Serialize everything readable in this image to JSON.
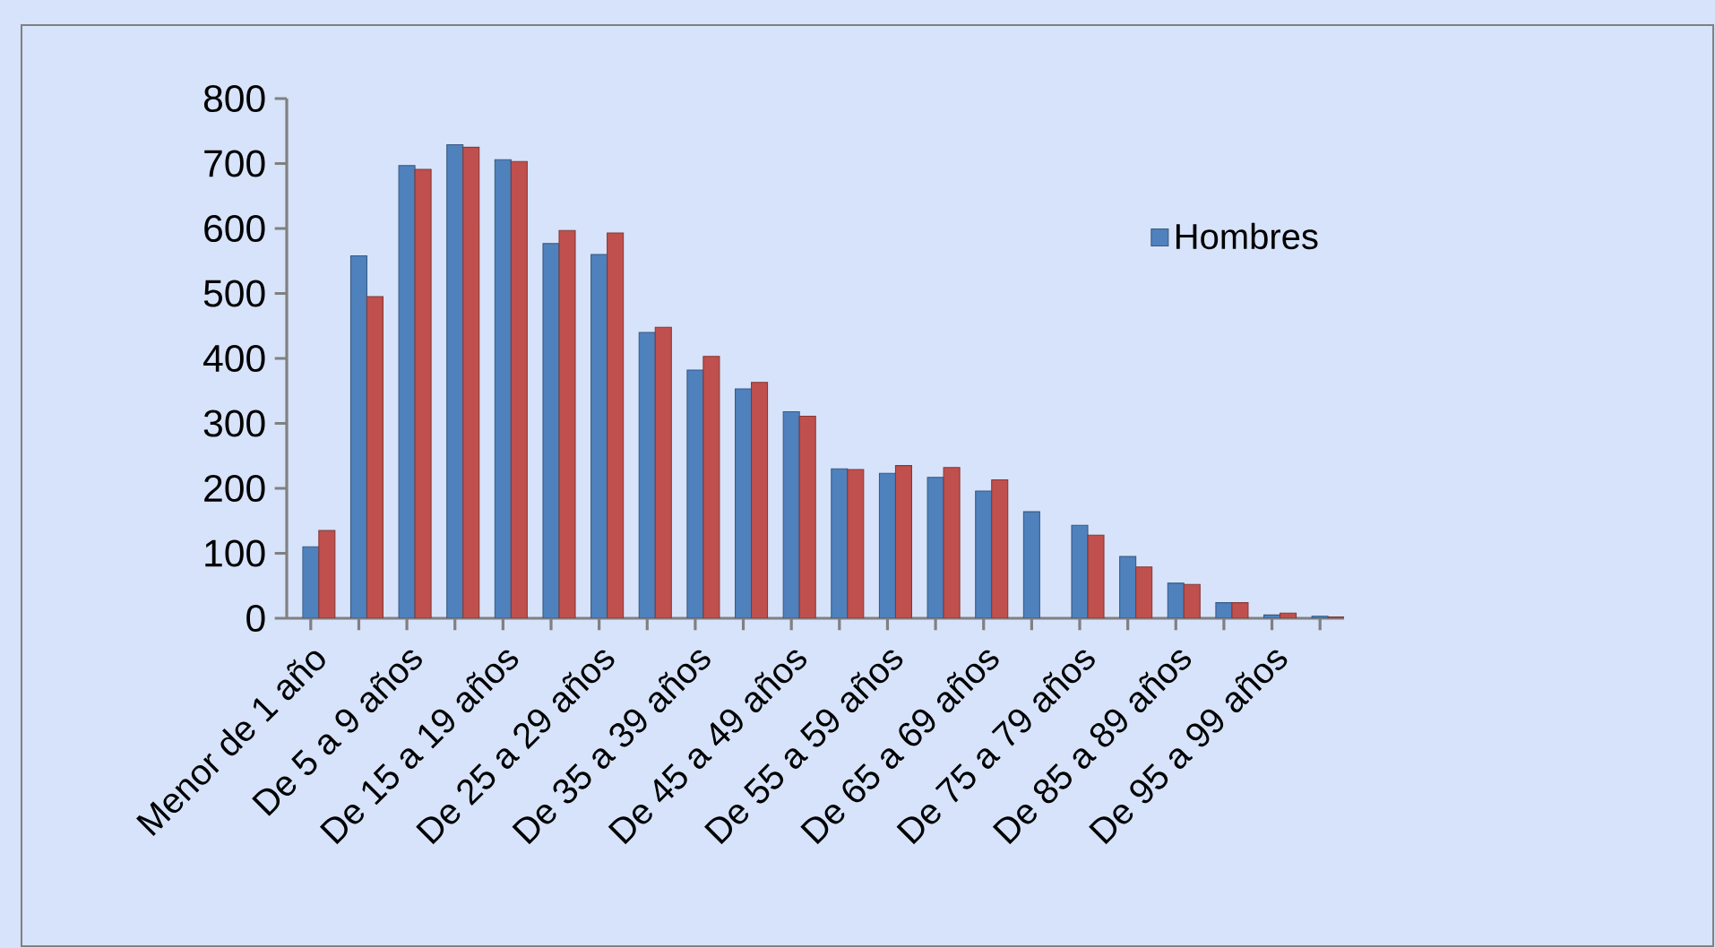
{
  "chart_data": {
    "type": "bar",
    "categories": [
      "Menor de 1 año",
      null,
      "De 5 a 9 años",
      null,
      "De 15 a 19 años",
      null,
      "De 25 a 29 años",
      null,
      "De 35 a 39 años",
      null,
      "De 45 a 49 años",
      null,
      "De 55 a 59 años",
      null,
      "De 65 a 69 años",
      null,
      "De 75 a 79 años",
      null,
      "De 85 a 89 años",
      null,
      "De 95 a 99 años",
      null
    ],
    "series": [
      {
        "name": "Hombres",
        "color": "#4f81bd",
        "values": [
          110,
          558,
          697,
          729,
          706,
          577,
          560,
          440,
          382,
          353,
          318,
          230,
          223,
          217,
          196,
          164,
          143,
          95,
          54,
          24,
          5,
          3
        ]
      },
      {
        "color": "#c0504d",
        "values": [
          135,
          495,
          691,
          725,
          703,
          597,
          593,
          448,
          403,
          363,
          311,
          229,
          235,
          232,
          213,
          null,
          128,
          79,
          52,
          24,
          8,
          2
        ]
      }
    ],
    "ylim": [
      0,
      800
    ],
    "yticks": [
      0,
      100,
      200,
      300,
      400,
      500,
      600,
      700,
      800
    ],
    "legend": "right"
  }
}
